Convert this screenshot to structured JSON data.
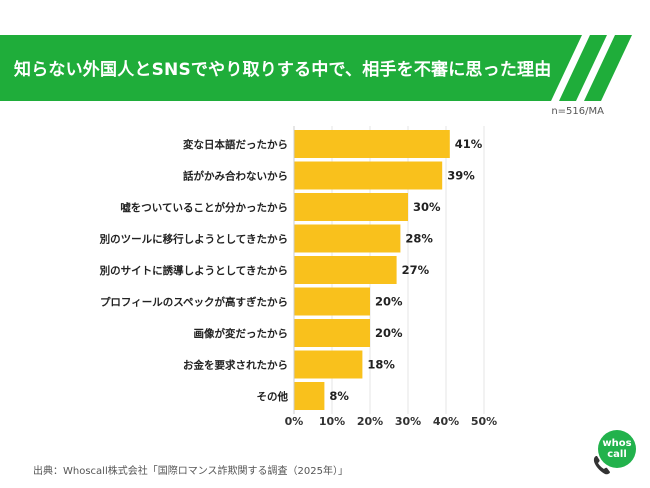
{
  "header": {
    "title": "知らない外国人とSNSでやり取りする中で、相手を不審に思った理由",
    "band_color": "#1fad3a"
  },
  "sample_note": "n=516/MA",
  "source": "出典：Whoscall株式会社「国際ロマンス詐欺関する調査（2025年）」",
  "logo": {
    "line1": "whos",
    "line2": "call",
    "color": "#22b24c",
    "icon": "phone-icon"
  },
  "chart_data": {
    "type": "bar",
    "orientation": "horizontal",
    "title": "",
    "xlabel": "",
    "ylabel": "",
    "categories": [
      "変な日本語だったから",
      "話がかみ合わないから",
      "嘘をついていることが分かったから",
      "別のツールに移行しようとしてきたから",
      "別のサイトに誘導しようとしてきたから",
      "プロフィールのスペックが高すぎたから",
      "画像が変だったから",
      "お金を要求されたから",
      "その他"
    ],
    "values": [
      41,
      39,
      30,
      28,
      27,
      20,
      20,
      18,
      8
    ],
    "value_labels": [
      "41%",
      "39%",
      "30%",
      "28%",
      "27%",
      "20%",
      "20%",
      "18%",
      "8%"
    ],
    "xlim": [
      0,
      50
    ],
    "xticks": [
      0,
      10,
      20,
      30,
      40,
      50
    ],
    "xtick_labels": [
      "0%",
      "10%",
      "20%",
      "30%",
      "40%",
      "50%"
    ],
    "grid": true,
    "legend": "none",
    "bar_color": "#f9c11c"
  }
}
